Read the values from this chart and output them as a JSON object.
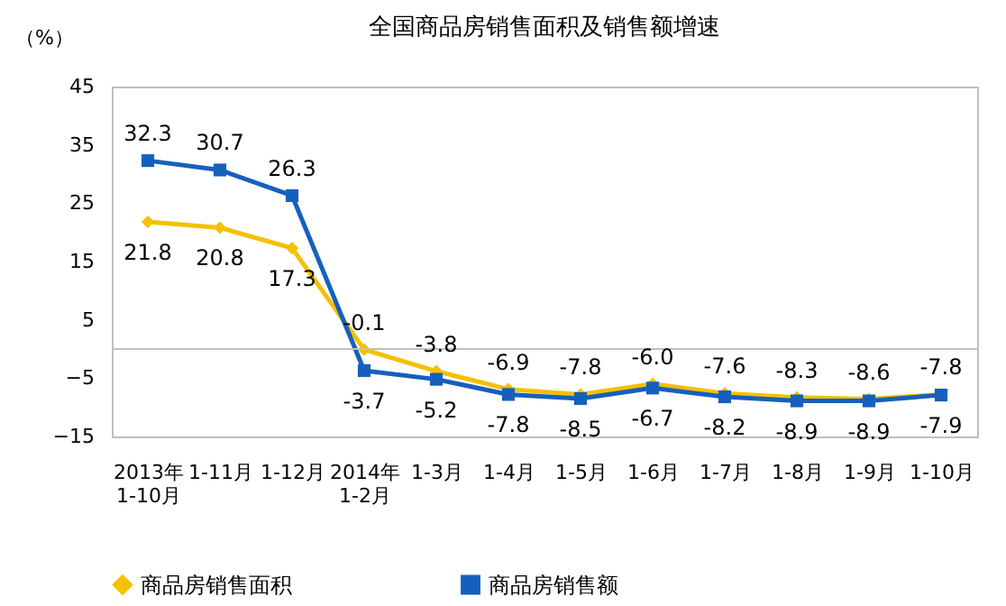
{
  "chart_data": {
    "type": "line",
    "title": "全国商品房销售面积及销售额增速",
    "ylabel": "（%）",
    "categories": [
      "2013年 1-10月",
      "1-11月",
      "1-12月",
      "2014年 1-2月",
      "1-3月",
      "1-4月",
      "1-5月",
      "1-6月",
      "1-7月",
      "1-8月",
      "1-9月",
      "1-10月"
    ],
    "series": [
      {
        "name": "商品房销售面积",
        "color": "#f5c000",
        "marker": "diamond",
        "values": [
          21.8,
          20.8,
          17.3,
          -0.1,
          -3.8,
          -6.9,
          -7.8,
          -6.0,
          -7.6,
          -8.3,
          -8.6,
          -7.8
        ],
        "value_labels": [
          "21.8",
          "20.8",
          "17.3",
          "-0.1",
          "-3.8",
          "-6.9",
          "-7.8",
          "-6.0",
          "-7.6",
          "-8.3",
          "-8.6",
          "-7.8"
        ]
      },
      {
        "name": "商品房销售额",
        "color": "#1660bd",
        "marker": "square",
        "values": [
          32.3,
          30.7,
          26.3,
          -3.7,
          -5.2,
          -7.8,
          -8.5,
          -6.7,
          -8.2,
          -8.9,
          -8.9,
          -7.9
        ],
        "value_labels": [
          "32.3",
          "30.7",
          "26.3",
          "-3.7",
          "-5.2",
          "-7.8",
          "-8.5",
          "-6.7",
          "-8.2",
          "-8.9",
          "-8.9",
          "-7.9"
        ]
      }
    ],
    "ylim": [
      -15,
      45
    ],
    "yticks": [
      -15,
      -5,
      5,
      15,
      25,
      35,
      45
    ],
    "ref_lines": [
      {
        "axis": "y",
        "value": 0,
        "color": "#c0c0c0"
      }
    ],
    "data_labels": true,
    "legend": "bottom",
    "grid": false
  }
}
